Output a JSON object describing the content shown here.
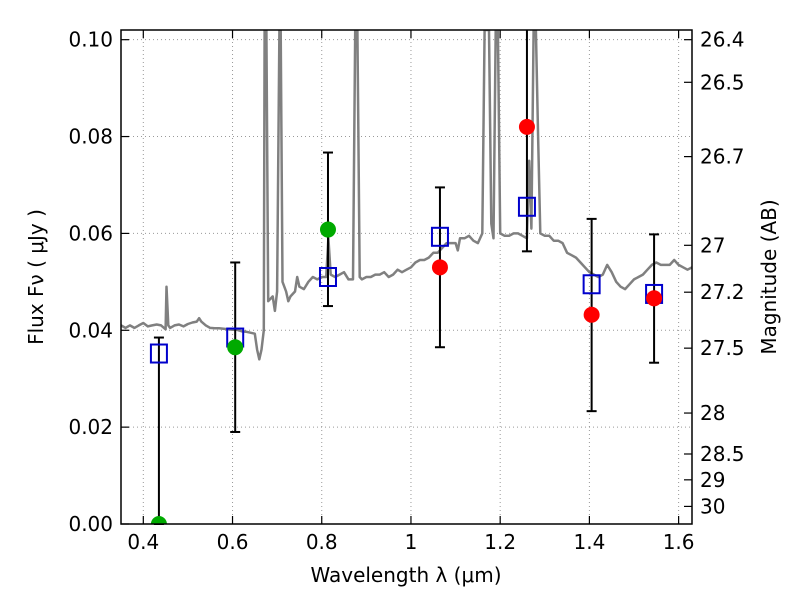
{
  "chart_data": {
    "type": "scatter",
    "xlabel": "Wavelength  λ (μm)",
    "ylabel": "Flux  Fν  ( μJy )",
    "ylabel_right": "Magnitude (AB)",
    "xlim": [
      0.35,
      1.63
    ],
    "ylim": [
      0.0,
      0.102
    ],
    "grid": true,
    "x_ticks": [
      0.4,
      0.6,
      0.8,
      1.0,
      1.2,
      1.4,
      1.6
    ],
    "x_tick_labels": [
      "0.4",
      "0.6",
      "0.8",
      "1",
      "1.2",
      "1.4",
      "1.6"
    ],
    "y_ticks": [
      0.0,
      0.02,
      0.04,
      0.06,
      0.08,
      0.1
    ],
    "y_tick_labels": [
      "0.00",
      "0.02",
      "0.04",
      "0.06",
      "0.08",
      "0.10"
    ],
    "mag_ticks": [
      26.4,
      26.5,
      26.7,
      27,
      27.2,
      27.5,
      28,
      28.5,
      29,
      30
    ],
    "mag_tick_labels": [
      "26.4",
      "26.5",
      "26.7",
      "27",
      "27.2",
      "27.5",
      "28",
      "28.5",
      "29",
      "30"
    ],
    "colors": {
      "spectrum": "#808080",
      "model_box": "#0000cc",
      "detection": "#ff0000",
      "low_sn": "#00aa00",
      "errorbar": "#000000",
      "grid": "#999999"
    },
    "spectrum": [
      [
        0.35,
        0.041
      ],
      [
        0.36,
        0.0405
      ],
      [
        0.37,
        0.041
      ],
      [
        0.38,
        0.0405
      ],
      [
        0.39,
        0.041
      ],
      [
        0.4,
        0.0415
      ],
      [
        0.41,
        0.0408
      ],
      [
        0.42,
        0.041
      ],
      [
        0.43,
        0.0412
      ],
      [
        0.44,
        0.041
      ],
      [
        0.45,
        0.0402
      ],
      [
        0.452,
        0.049
      ],
      [
        0.456,
        0.041
      ],
      [
        0.46,
        0.0405
      ],
      [
        0.47,
        0.041
      ],
      [
        0.48,
        0.0412
      ],
      [
        0.49,
        0.0408
      ],
      [
        0.5,
        0.0413
      ],
      [
        0.51,
        0.0416
      ],
      [
        0.52,
        0.0418
      ],
      [
        0.525,
        0.0425
      ],
      [
        0.53,
        0.0418
      ],
      [
        0.54,
        0.041
      ],
      [
        0.55,
        0.0405
      ],
      [
        0.56,
        0.0404
      ],
      [
        0.57,
        0.0404
      ],
      [
        0.58,
        0.0403
      ],
      [
        0.59,
        0.0402
      ],
      [
        0.6,
        0.0401
      ],
      [
        0.61,
        0.0401
      ],
      [
        0.62,
        0.0398
      ],
      [
        0.63,
        0.0397
      ],
      [
        0.64,
        0.0395
      ],
      [
        0.65,
        0.0393
      ],
      [
        0.655,
        0.036
      ],
      [
        0.66,
        0.034
      ],
      [
        0.665,
        0.036
      ],
      [
        0.67,
        0.04
      ],
      [
        0.672,
        0.102
      ],
      [
        0.676,
        0.102
      ],
      [
        0.68,
        0.046
      ],
      [
        0.69,
        0.047
      ],
      [
        0.695,
        0.044
      ],
      [
        0.7,
        0.048
      ],
      [
        0.705,
        0.102
      ],
      [
        0.708,
        0.102
      ],
      [
        0.712,
        0.05
      ],
      [
        0.72,
        0.048
      ],
      [
        0.725,
        0.046
      ],
      [
        0.73,
        0.047
      ],
      [
        0.74,
        0.048
      ],
      [
        0.745,
        0.051
      ],
      [
        0.75,
        0.049
      ],
      [
        0.76,
        0.0485
      ],
      [
        0.77,
        0.05
      ],
      [
        0.78,
        0.051
      ],
      [
        0.79,
        0.0505
      ],
      [
        0.8,
        0.051
      ],
      [
        0.81,
        0.051
      ],
      [
        0.815,
        0.059
      ],
      [
        0.82,
        0.0515
      ],
      [
        0.83,
        0.051
      ],
      [
        0.84,
        0.0515
      ],
      [
        0.85,
        0.052
      ],
      [
        0.86,
        0.0505
      ],
      [
        0.87,
        0.0505
      ],
      [
        0.875,
        0.102
      ],
      [
        0.88,
        0.102
      ],
      [
        0.885,
        0.051
      ],
      [
        0.89,
        0.0505
      ],
      [
        0.9,
        0.051
      ],
      [
        0.91,
        0.051
      ],
      [
        0.92,
        0.0515
      ],
      [
        0.93,
        0.0515
      ],
      [
        0.94,
        0.052
      ],
      [
        0.95,
        0.051
      ],
      [
        0.96,
        0.0515
      ],
      [
        0.97,
        0.0525
      ],
      [
        0.98,
        0.052
      ],
      [
        0.99,
        0.0525
      ],
      [
        1.0,
        0.053
      ],
      [
        1.01,
        0.054
      ],
      [
        1.02,
        0.0545
      ],
      [
        1.03,
        0.0545
      ],
      [
        1.04,
        0.055
      ],
      [
        1.05,
        0.056
      ],
      [
        1.06,
        0.056
      ],
      [
        1.07,
        0.057
      ],
      [
        1.08,
        0.058
      ],
      [
        1.09,
        0.058
      ],
      [
        1.1,
        0.058
      ],
      [
        1.105,
        0.0565
      ],
      [
        1.11,
        0.059
      ],
      [
        1.12,
        0.059
      ],
      [
        1.13,
        0.0595
      ],
      [
        1.14,
        0.0585
      ],
      [
        1.15,
        0.058
      ],
      [
        1.16,
        0.06
      ],
      [
        1.165,
        0.102
      ],
      [
        1.175,
        0.102
      ],
      [
        1.18,
        0.062
      ],
      [
        1.185,
        0.059
      ],
      [
        1.19,
        0.102
      ],
      [
        1.195,
        0.102
      ],
      [
        1.2,
        0.06
      ],
      [
        1.21,
        0.0595
      ],
      [
        1.22,
        0.0595
      ],
      [
        1.23,
        0.06
      ],
      [
        1.24,
        0.06
      ],
      [
        1.25,
        0.0595
      ],
      [
        1.26,
        0.059
      ],
      [
        1.265,
        0.075
      ],
      [
        1.27,
        0.061
      ],
      [
        1.275,
        0.102
      ],
      [
        1.28,
        0.102
      ],
      [
        1.285,
        0.08
      ],
      [
        1.29,
        0.06
      ],
      [
        1.3,
        0.0595
      ],
      [
        1.31,
        0.0595
      ],
      [
        1.32,
        0.0585
      ],
      [
        1.33,
        0.0585
      ],
      [
        1.34,
        0.058
      ],
      [
        1.35,
        0.056
      ],
      [
        1.36,
        0.0555
      ],
      [
        1.37,
        0.055
      ],
      [
        1.38,
        0.054
      ],
      [
        1.39,
        0.053
      ],
      [
        1.4,
        0.052
      ],
      [
        1.41,
        0.0515
      ],
      [
        1.42,
        0.051
      ],
      [
        1.43,
        0.0515
      ],
      [
        1.44,
        0.0535
      ],
      [
        1.45,
        0.052
      ],
      [
        1.46,
        0.05
      ],
      [
        1.47,
        0.049
      ],
      [
        1.48,
        0.0485
      ],
      [
        1.49,
        0.0495
      ],
      [
        1.5,
        0.0505
      ],
      [
        1.51,
        0.051
      ],
      [
        1.52,
        0.0515
      ],
      [
        1.53,
        0.0525
      ],
      [
        1.54,
        0.0535
      ],
      [
        1.55,
        0.054
      ],
      [
        1.56,
        0.0535
      ],
      [
        1.57,
        0.0535
      ],
      [
        1.58,
        0.0535
      ],
      [
        1.59,
        0.0545
      ],
      [
        1.6,
        0.0535
      ],
      [
        1.61,
        0.053
      ],
      [
        1.62,
        0.0525
      ],
      [
        1.63,
        0.053
      ]
    ],
    "model_points": [
      {
        "x": 0.435,
        "y": 0.0352
      },
      {
        "x": 0.606,
        "y": 0.0385
      },
      {
        "x": 0.814,
        "y": 0.051
      },
      {
        "x": 1.065,
        "y": 0.0593
      },
      {
        "x": 1.26,
        "y": 0.0655
      },
      {
        "x": 1.405,
        "y": 0.0495
      },
      {
        "x": 1.545,
        "y": 0.0475
      }
    ],
    "observed_points": [
      {
        "x": 0.435,
        "y": 0.0,
        "err_low": 0.0,
        "err_high": 0.0385,
        "color": "#00aa00"
      },
      {
        "x": 0.606,
        "y": 0.0365,
        "err_low": 0.019,
        "err_high": 0.054,
        "color": "#00aa00"
      },
      {
        "x": 0.814,
        "y": 0.0608,
        "err_low": 0.045,
        "err_high": 0.0767,
        "color": "#00aa00"
      },
      {
        "x": 1.065,
        "y": 0.053,
        "err_low": 0.0365,
        "err_high": 0.0695,
        "color": "#ff0000"
      },
      {
        "x": 1.26,
        "y": 0.082,
        "err_low": 0.0563,
        "err_high": 0.102,
        "color": "#ff0000"
      },
      {
        "x": 1.405,
        "y": 0.0432,
        "err_low": 0.0233,
        "err_high": 0.063,
        "color": "#ff0000"
      },
      {
        "x": 1.545,
        "y": 0.0466,
        "err_low": 0.0333,
        "err_high": 0.0598,
        "color": "#ff0000"
      }
    ]
  }
}
